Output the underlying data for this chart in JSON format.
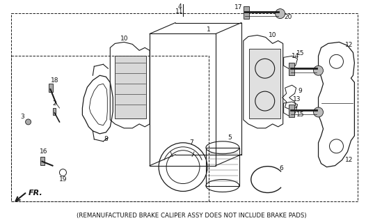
{
  "caption": "(REMANUFACTURED BRAKE CALIPER ASSY DOES NOT INCLUDE BRAKE PADS)",
  "bg_color": "#ffffff",
  "fig_width": 5.49,
  "fig_height": 3.2,
  "dpi": 100,
  "fr_label": "FR.",
  "line_color": "#1a1a1a",
  "text_color": "#111111",
  "caption_fontsize": 6.2,
  "label_fontsize": 6.5
}
